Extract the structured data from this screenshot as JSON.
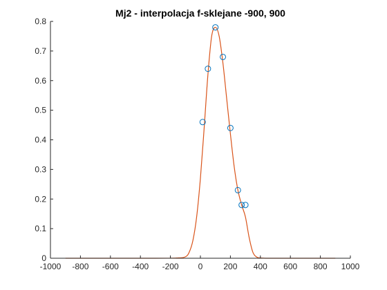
{
  "chart_data": {
    "type": "line",
    "title": "Mj2 - interpolacja f-sklejane -900, 900",
    "xlabel": "",
    "ylabel": "",
    "xlim": [
      -1000,
      1000
    ],
    "ylim": [
      0,
      0.8
    ],
    "x_ticks": [
      -1000,
      -800,
      -600,
      -400,
      -200,
      0,
      200,
      400,
      600,
      800,
      1000
    ],
    "y_ticks": [
      0,
      0.1,
      0.2,
      0.3,
      0.4,
      0.5,
      0.6,
      0.7,
      0.8
    ],
    "x_tick_labels": [
      "-1000",
      "-800",
      "-600",
      "-400",
      "-200",
      "0",
      "200",
      "400",
      "600",
      "800",
      "1000"
    ],
    "y_tick_labels": [
      "0",
      "0.1",
      "0.2",
      "0.3",
      "0.4",
      "0.5",
      "0.6",
      "0.7",
      "0.8"
    ],
    "grid": false,
    "series": [
      {
        "kind": "markers",
        "marker": "circle",
        "color": "#0072BD",
        "x": [
          15,
          50,
          100,
          150,
          200,
          250,
          275,
          300
        ],
        "y": [
          0.46,
          0.64,
          0.78,
          0.68,
          0.44,
          0.23,
          0.18,
          0.18
        ]
      },
      {
        "kind": "line",
        "color": "#D95319",
        "x": [
          -900,
          -300,
          -150,
          -100,
          -75,
          -50,
          -25,
          0,
          25,
          50,
          75,
          100,
          125,
          150,
          175,
          200,
          225,
          250,
          275,
          300,
          325,
          350,
          375,
          400,
          450,
          600,
          900
        ],
        "y": [
          0,
          0,
          0.001,
          0.005,
          0.02,
          0.06,
          0.14,
          0.27,
          0.44,
          0.62,
          0.75,
          0.78,
          0.75,
          0.66,
          0.54,
          0.42,
          0.31,
          0.23,
          0.18,
          0.14,
          0.07,
          0.02,
          0.004,
          0.001,
          0,
          0,
          0
        ]
      }
    ]
  }
}
